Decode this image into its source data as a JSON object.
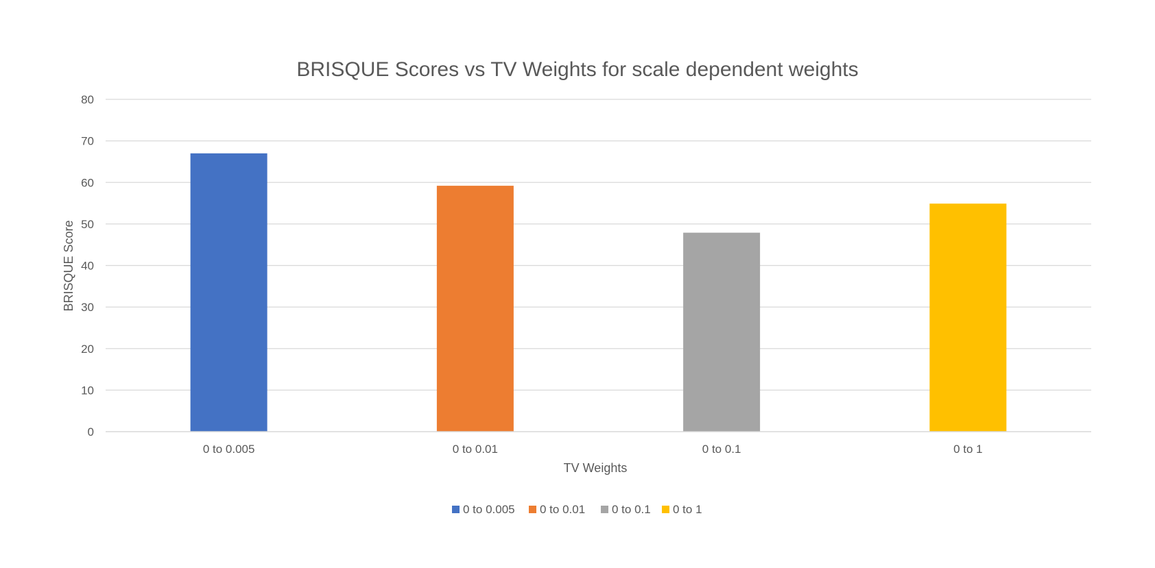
{
  "chart_data": {
    "type": "bar",
    "title": "BRISQUE Scores vs TV Weights for scale dependent weights",
    "xlabel": "TV Weights",
    "ylabel": "BRISQUE Score",
    "categories": [
      "0 to 0.005",
      "0 to 0.01",
      "0 to 0.1",
      "0 to 1"
    ],
    "values": [
      67,
      59.2,
      47.9,
      54.9
    ],
    "colors": [
      "#4472C4",
      "#ED7D31",
      "#A5A5A5",
      "#FFC000"
    ],
    "ylim": [
      0,
      80
    ],
    "yticks": [
      0,
      10,
      20,
      30,
      40,
      50,
      60,
      70,
      80
    ],
    "grid": true,
    "legend_position": "bottom",
    "legend": [
      "0 to 0.005",
      "0 to 0.01",
      "0 to 0.1",
      "0 to 1"
    ]
  }
}
